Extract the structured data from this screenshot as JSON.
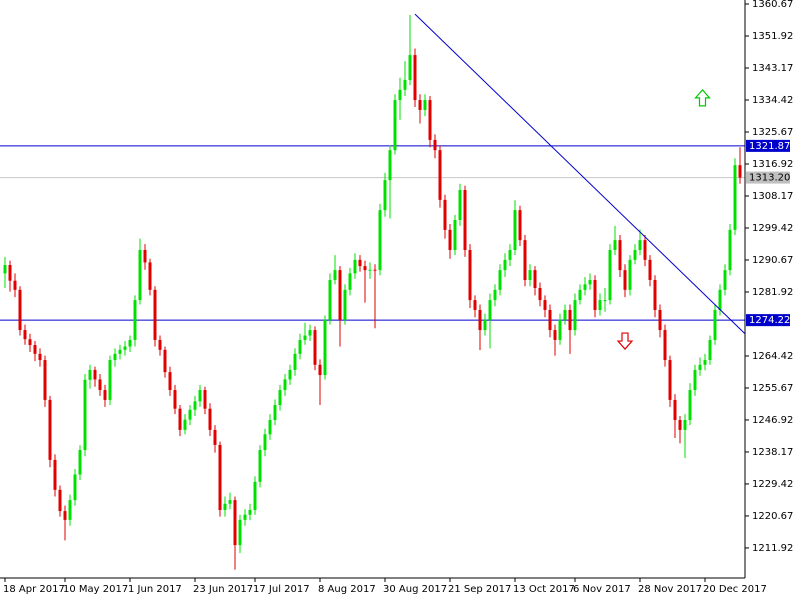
{
  "chart_data": {
    "type": "candlestick",
    "up_color": "#00e000",
    "down_color": "#e00000",
    "ylim": [
      1203.7,
      1360.67
    ],
    "yticks": [
      1360.67,
      1351.92,
      1343.17,
      1334.42,
      1325.67,
      1316.92,
      1308.17,
      1299.42,
      1290.67,
      1281.92,
      1264.42,
      1255.67,
      1246.92,
      1238.17,
      1229.42,
      1220.67,
      1211.92
    ],
    "categories": [
      "18 Apr 2017",
      null,
      null,
      null,
      null,
      null,
      null,
      null,
      null,
      null,
      null,
      null,
      "10 May 2017",
      null,
      null,
      null,
      null,
      null,
      null,
      null,
      null,
      null,
      null,
      null,
      null,
      "1 Jun 2017",
      null,
      null,
      null,
      null,
      null,
      null,
      null,
      null,
      null,
      null,
      null,
      null,
      "23 Jun 2017",
      null,
      null,
      null,
      null,
      null,
      null,
      null,
      null,
      null,
      null,
      null,
      "17 Jul 2017",
      null,
      null,
      null,
      null,
      null,
      null,
      null,
      null,
      null,
      null,
      null,
      null,
      "8 Aug 2017",
      null,
      null,
      null,
      null,
      null,
      null,
      null,
      null,
      null,
      null,
      null,
      null,
      "30 Aug 2017",
      null,
      null,
      null,
      null,
      null,
      null,
      null,
      null,
      null,
      null,
      null,
      null,
      "21 Sep 2017",
      null,
      null,
      null,
      null,
      null,
      null,
      null,
      null,
      null,
      null,
      null,
      null,
      "13 Oct 2017",
      null,
      null,
      null,
      null,
      null,
      null,
      null,
      null,
      null,
      null,
      null,
      "6 Nov 2017",
      null,
      null,
      null,
      null,
      null,
      null,
      null,
      null,
      null,
      null,
      null,
      null,
      "28 Nov 2017",
      null,
      null,
      null,
      null,
      null,
      null,
      null,
      null,
      null,
      null,
      null,
      null,
      "20 Dec 2017",
      null,
      null,
      null,
      null,
      null,
      null,
      null
    ],
    "ohlc": [
      [
        1287.0,
        1291.5,
        1283.0,
        1289.3
      ],
      [
        1289.3,
        1290.5,
        1282.0,
        1285.0
      ],
      [
        1285.0,
        1287.0,
        1280.5,
        1282.5
      ],
      [
        1282.5,
        1283.5,
        1270.0,
        1271.5
      ],
      [
        1271.5,
        1273.0,
        1267.5,
        1269.0
      ],
      [
        1269.0,
        1270.5,
        1265.5,
        1267.4
      ],
      [
        1267.4,
        1268.5,
        1263.0,
        1265.0
      ],
      [
        1265.0,
        1266.5,
        1261.5,
        1263.3
      ],
      [
        1263.3,
        1264.5,
        1250.5,
        1252.4
      ],
      [
        1252.4,
        1253.5,
        1234.0,
        1236.0
      ],
      [
        1236.0,
        1237.5,
        1226.0,
        1227.8
      ],
      [
        1227.8,
        1229.0,
        1220.5,
        1222.0
      ],
      [
        1222.0,
        1223.5,
        1214.0,
        1219.6
      ],
      [
        1219.6,
        1226.5,
        1218.0,
        1225.0
      ],
      [
        1225.0,
        1233.5,
        1223.5,
        1232.0
      ],
      [
        1232.0,
        1240.0,
        1230.5,
        1238.7
      ],
      [
        1238.7,
        1259.5,
        1237.0,
        1257.9
      ],
      [
        1257.9,
        1262.0,
        1255.5,
        1260.6
      ],
      [
        1260.6,
        1261.5,
        1256.0,
        1258.0
      ],
      [
        1258.0,
        1259.5,
        1253.5,
        1255.1
      ],
      [
        1255.1,
        1256.5,
        1250.5,
        1252.4
      ],
      [
        1252.4,
        1264.5,
        1251.0,
        1263.3
      ],
      [
        1263.3,
        1266.5,
        1261.5,
        1265.0
      ],
      [
        1265.0,
        1267.5,
        1263.5,
        1266.1
      ],
      [
        1266.1,
        1268.5,
        1264.5,
        1267.0
      ],
      [
        1267.0,
        1270.0,
        1265.5,
        1268.8
      ],
      [
        1268.8,
        1281.0,
        1267.0,
        1279.7
      ],
      [
        1279.7,
        1296.5,
        1278.5,
        1293.4
      ],
      [
        1293.4,
        1295.0,
        1288.0,
        1290.0
      ],
      [
        1290.0,
        1291.0,
        1281.0,
        1282.5
      ],
      [
        1282.5,
        1283.5,
        1267.0,
        1268.8
      ],
      [
        1268.8,
        1270.0,
        1264.5,
        1266.1
      ],
      [
        1266.1,
        1267.0,
        1258.5,
        1260.0
      ],
      [
        1260.0,
        1261.5,
        1253.5,
        1255.1
      ],
      [
        1255.1,
        1256.5,
        1248.5,
        1250.0
      ],
      [
        1250.0,
        1251.0,
        1242.5,
        1244.2
      ],
      [
        1244.2,
        1248.5,
        1243.0,
        1247.0
      ],
      [
        1247.0,
        1251.0,
        1245.5,
        1249.7
      ],
      [
        1249.7,
        1253.5,
        1248.0,
        1252.0
      ],
      [
        1252.0,
        1256.5,
        1250.5,
        1255.1
      ],
      [
        1255.1,
        1256.0,
        1248.5,
        1250.0
      ],
      [
        1250.0,
        1251.5,
        1242.5,
        1244.2
      ],
      [
        1244.2,
        1245.5,
        1238.0,
        1240.1
      ],
      [
        1240.1,
        1241.0,
        1220.5,
        1222.3
      ],
      [
        1222.3,
        1226.0,
        1220.5,
        1224.0
      ],
      [
        1224.0,
        1227.0,
        1222.5,
        1225.0
      ],
      [
        1225.0,
        1226.0,
        1206.0,
        1212.7
      ],
      [
        1212.7,
        1221.0,
        1210.5,
        1219.6
      ],
      [
        1219.6,
        1222.5,
        1218.0,
        1221.0
      ],
      [
        1221.0,
        1224.0,
        1219.5,
        1222.3
      ],
      [
        1222.3,
        1231.5,
        1221.0,
        1230.0
      ],
      [
        1230.0,
        1240.0,
        1228.5,
        1238.7
      ],
      [
        1238.7,
        1244.5,
        1237.0,
        1243.0
      ],
      [
        1243.0,
        1248.5,
        1241.5,
        1246.9
      ],
      [
        1246.9,
        1252.5,
        1245.5,
        1251.0
      ],
      [
        1251.0,
        1256.5,
        1249.5,
        1255.1
      ],
      [
        1255.1,
        1259.5,
        1253.5,
        1258.0
      ],
      [
        1258.0,
        1262.0,
        1256.5,
        1260.6
      ],
      [
        1260.6,
        1266.5,
        1259.0,
        1265.0
      ],
      [
        1265.0,
        1270.5,
        1263.5,
        1268.8
      ],
      [
        1268.8,
        1273.5,
        1267.5,
        1270.0
      ],
      [
        1270.0,
        1273.0,
        1268.5,
        1271.5
      ],
      [
        1271.5,
        1272.5,
        1260.5,
        1262.0
      ],
      [
        1262.0,
        1263.5,
        1251.0,
        1259.2
      ],
      [
        1259.2,
        1275.5,
        1258.0,
        1274.3
      ],
      [
        1274.3,
        1287.0,
        1273.0,
        1285.2
      ],
      [
        1285.2,
        1292.0,
        1284.0,
        1287.9
      ],
      [
        1287.9,
        1289.0,
        1267.0,
        1274.3
      ],
      [
        1274.3,
        1284.0,
        1273.0,
        1282.5
      ],
      [
        1282.5,
        1288.5,
        1281.0,
        1287.0
      ],
      [
        1287.0,
        1292.5,
        1285.5,
        1290.7
      ],
      [
        1290.7,
        1292.0,
        1287.5,
        1289.0
      ],
      [
        1289.0,
        1290.5,
        1279.0,
        1287.9
      ],
      [
        1287.9,
        1290.0,
        1285.5,
        1288.0
      ],
      [
        1288.0,
        1289.5,
        1272.0,
        1287.9
      ],
      [
        1287.9,
        1306.0,
        1286.5,
        1304.3
      ],
      [
        1304.3,
        1314.5,
        1302.5,
        1312.5
      ],
      [
        1312.5,
        1322.0,
        1302.0,
        1320.7
      ],
      [
        1320.7,
        1336.0,
        1319.5,
        1334.4
      ],
      [
        1334.4,
        1340.5,
        1329.0,
        1337.2
      ],
      [
        1337.2,
        1345.0,
        1335.5,
        1339.9
      ],
      [
        1339.9,
        1357.7,
        1338.5,
        1346.7
      ],
      [
        1346.7,
        1348.5,
        1332.5,
        1334.4
      ],
      [
        1334.4,
        1336.0,
        1328.0,
        1331.7
      ],
      [
        1331.7,
        1336.0,
        1330.0,
        1334.4
      ],
      [
        1334.4,
        1335.5,
        1321.5,
        1323.5
      ],
      [
        1323.5,
        1325.0,
        1318.5,
        1320.7
      ],
      [
        1320.7,
        1322.0,
        1305.0,
        1307.1
      ],
      [
        1307.1,
        1308.5,
        1296.5,
        1298.9
      ],
      [
        1298.9,
        1300.5,
        1291.0,
        1293.4
      ],
      [
        1293.4,
        1303.0,
        1292.0,
        1301.6
      ],
      [
        1301.6,
        1311.5,
        1300.0,
        1309.8
      ],
      [
        1309.8,
        1311.0,
        1291.5,
        1293.4
      ],
      [
        1293.4,
        1295.0,
        1277.5,
        1279.7
      ],
      [
        1279.7,
        1281.0,
        1275.0,
        1277.0
      ],
      [
        1277.0,
        1278.5,
        1266.0,
        1271.5
      ],
      [
        1271.5,
        1276.0,
        1270.0,
        1274.3
      ],
      [
        1274.3,
        1281.5,
        1266.5,
        1279.7
      ],
      [
        1279.7,
        1284.0,
        1278.0,
        1282.5
      ],
      [
        1282.5,
        1289.5,
        1281.0,
        1287.9
      ],
      [
        1287.9,
        1292.5,
        1286.0,
        1290.7
      ],
      [
        1290.7,
        1295.0,
        1289.0,
        1293.4
      ],
      [
        1293.4,
        1307.0,
        1292.0,
        1304.3
      ],
      [
        1304.3,
        1305.5,
        1294.5,
        1296.1
      ],
      [
        1296.1,
        1297.5,
        1283.5,
        1285.2
      ],
      [
        1285.2,
        1289.5,
        1283.5,
        1287.9
      ],
      [
        1287.9,
        1289.0,
        1281.0,
        1283.0
      ],
      [
        1283.0,
        1284.5,
        1278.0,
        1279.7
      ],
      [
        1279.7,
        1281.0,
        1275.0,
        1277.0
      ],
      [
        1277.0,
        1278.5,
        1269.5,
        1271.5
      ],
      [
        1271.5,
        1273.0,
        1264.5,
        1268.8
      ],
      [
        1268.8,
        1276.0,
        1267.5,
        1274.3
      ],
      [
        1274.3,
        1278.5,
        1273.0,
        1277.0
      ],
      [
        1277.0,
        1278.5,
        1265.0,
        1271.5
      ],
      [
        1271.5,
        1281.5,
        1270.0,
        1279.7
      ],
      [
        1279.7,
        1284.0,
        1278.5,
        1282.5
      ],
      [
        1282.5,
        1286.0,
        1281.0,
        1284.0
      ],
      [
        1284.0,
        1287.0,
        1282.5,
        1285.2
      ],
      [
        1285.2,
        1286.5,
        1275.0,
        1277.0
      ],
      [
        1277.0,
        1281.5,
        1275.5,
        1279.7
      ],
      [
        1279.7,
        1283.0,
        1276.5,
        1279.7
      ],
      [
        1279.7,
        1295.0,
        1278.5,
        1293.4
      ],
      [
        1293.4,
        1300.0,
        1292.0,
        1296.1
      ],
      [
        1296.1,
        1297.5,
        1286.0,
        1287.9
      ],
      [
        1287.9,
        1289.5,
        1280.5,
        1282.5
      ],
      [
        1282.5,
        1292.0,
        1281.0,
        1290.7
      ],
      [
        1290.7,
        1295.0,
        1289.5,
        1293.4
      ],
      [
        1293.4,
        1299.0,
        1292.0,
        1296.1
      ],
      [
        1296.1,
        1297.5,
        1289.0,
        1290.7
      ],
      [
        1290.7,
        1292.0,
        1283.5,
        1285.2
      ],
      [
        1285.2,
        1286.5,
        1275.0,
        1277.0
      ],
      [
        1277.0,
        1278.5,
        1269.5,
        1271.5
      ],
      [
        1271.5,
        1273.0,
        1261.5,
        1263.3
      ],
      [
        1263.3,
        1264.5,
        1250.5,
        1252.4
      ],
      [
        1252.4,
        1254.0,
        1242.0,
        1246.9
      ],
      [
        1246.9,
        1248.0,
        1240.5,
        1244.2
      ],
      [
        1244.2,
        1248.5,
        1236.5,
        1246.9
      ],
      [
        1246.9,
        1257.0,
        1245.5,
        1255.1
      ],
      [
        1255.1,
        1262.0,
        1253.5,
        1260.6
      ],
      [
        1260.6,
        1264.0,
        1259.0,
        1262.0
      ],
      [
        1262.0,
        1265.0,
        1260.5,
        1263.3
      ],
      [
        1263.3,
        1270.0,
        1262.0,
        1268.8
      ],
      [
        1268.8,
        1278.5,
        1267.5,
        1277.0
      ],
      [
        1277.0,
        1284.0,
        1275.5,
        1282.5
      ],
      [
        1282.5,
        1289.5,
        1281.0,
        1287.9
      ],
      [
        1287.9,
        1300.5,
        1286.5,
        1298.9
      ],
      [
        1298.9,
        1318.5,
        1297.5,
        1316.6
      ],
      [
        1316.6,
        1321.5,
        1311.5,
        1313.2
      ]
    ],
    "levels": [
      {
        "value": 1321.87,
        "label": "1321.87",
        "color": "#0000cd",
        "label_bg": "#0000cd",
        "label_color": "#ffffff"
      },
      {
        "value": 1274.22,
        "label": "1274.22",
        "color": "#0000cd",
        "label_bg": "#0000cd",
        "label_color": "#ffffff"
      },
      {
        "value": 1313.2,
        "label": "1313.20",
        "color": "#c8c8c8",
        "label_bg": "#c0c0c0",
        "label_color": "#000000"
      }
    ],
    "trend_line": {
      "x": [
        82,
        148
      ],
      "y": [
        1357.9,
        1270.5
      ],
      "color": "#0000cd"
    },
    "arrows": [
      {
        "direction": "up",
        "x": 139.5,
        "y": 1335.0,
        "color": "#00c800"
      },
      {
        "direction": "down",
        "x": 124,
        "y": 1268.5,
        "color": "#e00000"
      }
    ]
  }
}
